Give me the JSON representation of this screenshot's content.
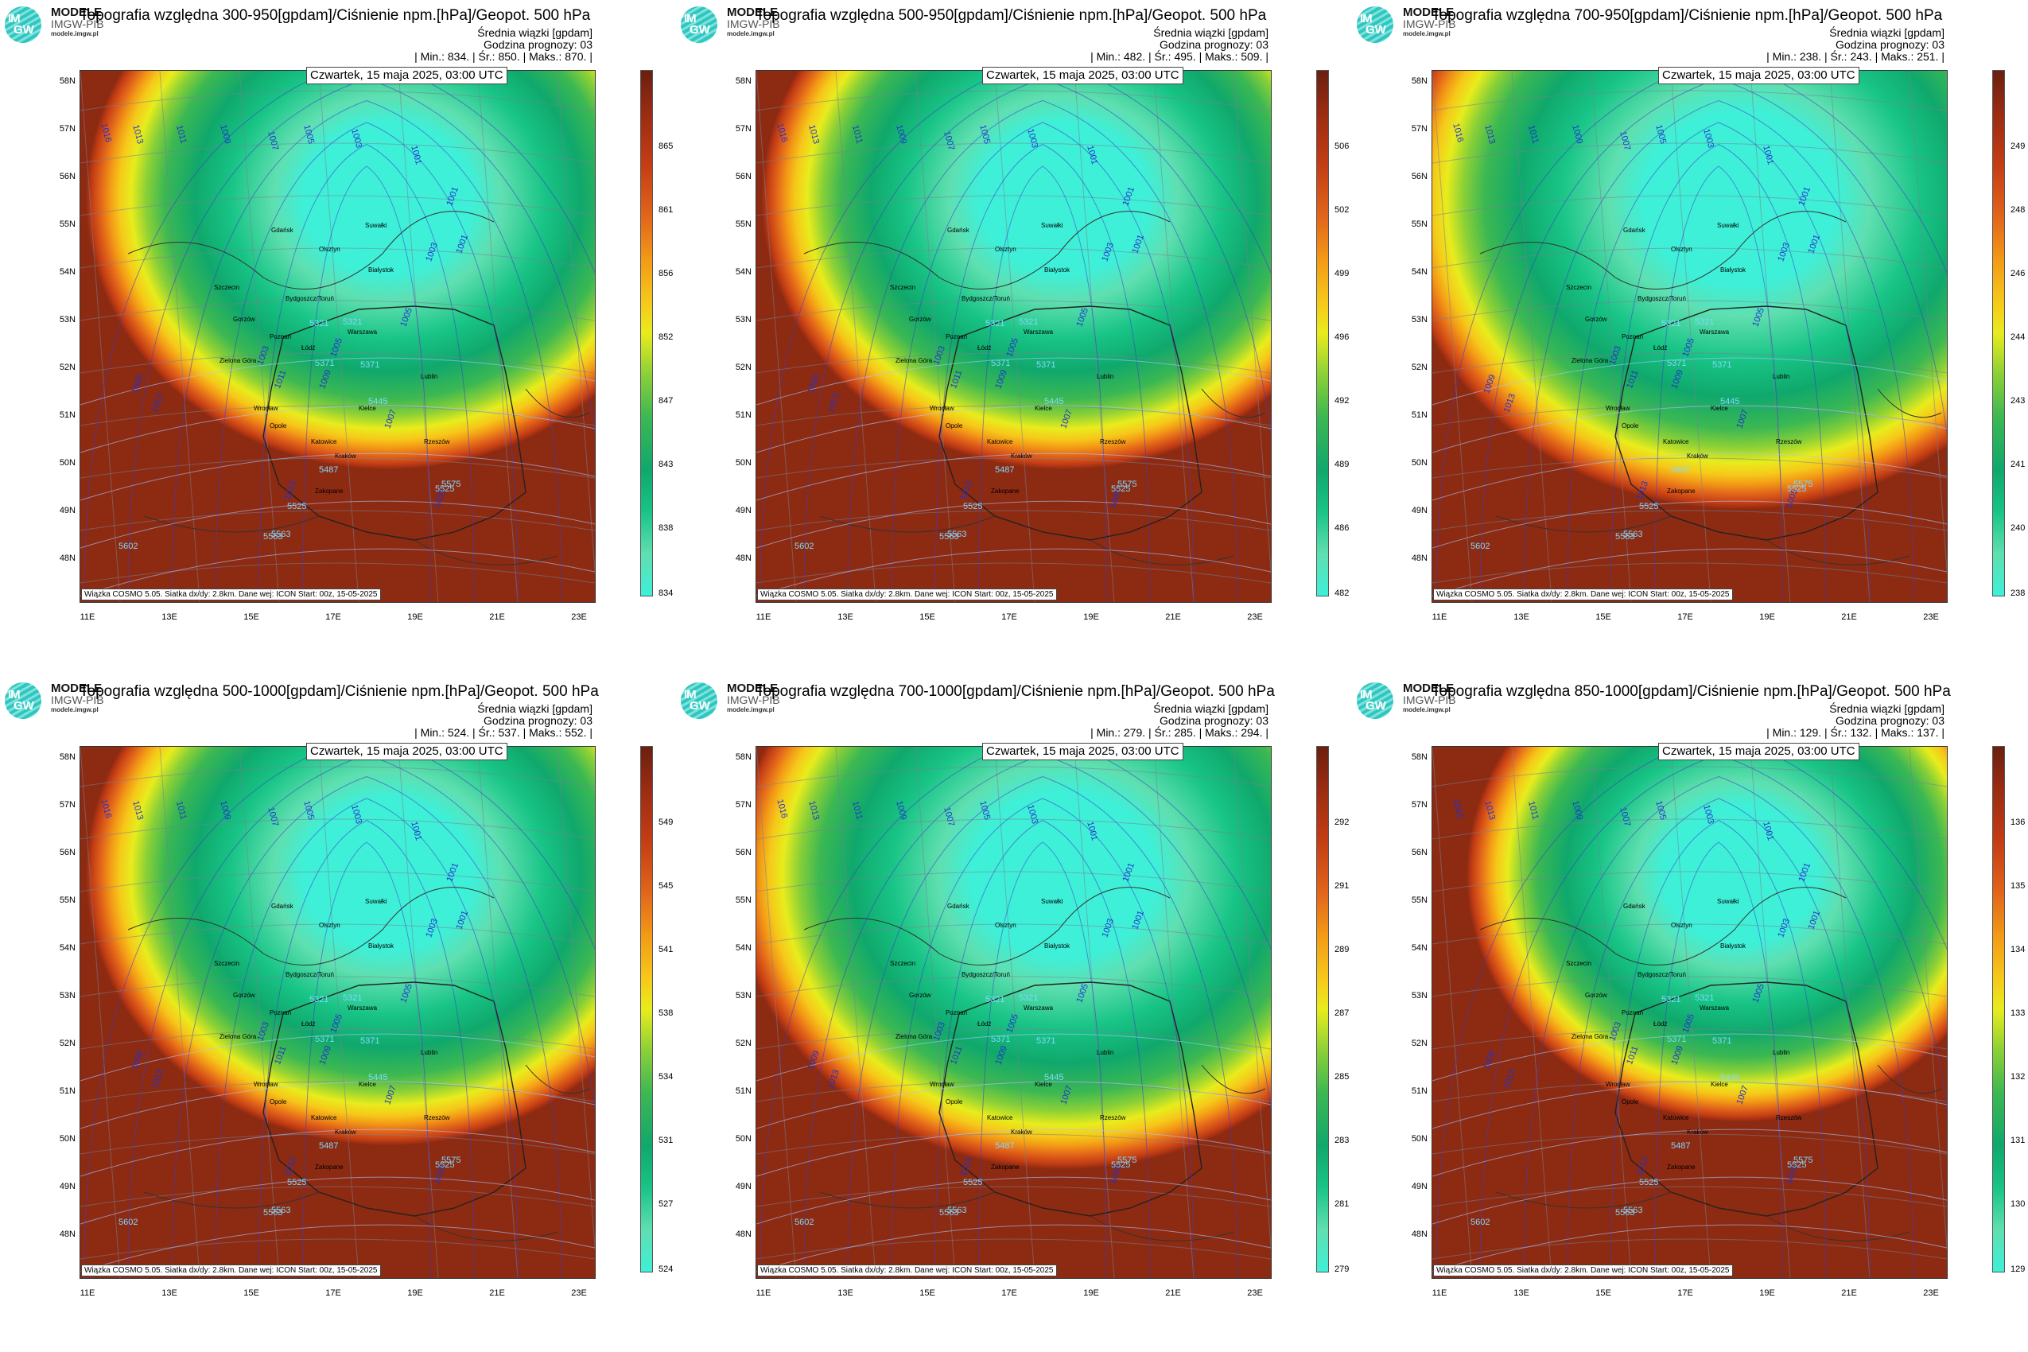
{
  "logo": {
    "im": "IM",
    "gw": "GW",
    "brand": "MODELE",
    "brand_sub": "IMGW-PIB",
    "site": "modele.imgw.pl"
  },
  "common": {
    "ensemble": "Średnia wiązki [gpdam]",
    "forecast_hour": "Godzina prognozy: 03",
    "date": "Czwartek, 15 maja 2025, 03:00 UTC",
    "footer": "Wiązka COSMO 5.05. Siatka dx/dy: 2.8km. Dane wej: ICON Start: 00z, 15-05-2025",
    "lat_labels": [
      "58N",
      "57N",
      "56N",
      "55N",
      "54N",
      "53N",
      "52N",
      "51N",
      "50N",
      "49N",
      "48N"
    ],
    "lon_labels": [
      "11E",
      "13E",
      "15E",
      "17E",
      "19E",
      "21E",
      "23E"
    ]
  },
  "panels": [
    {
      "title": "Topografia względna 300-950[gpdam]/Ciśnienie npm.[hPa]/Geopot. 500 hPa",
      "stats": "| Min.:   834. | Śr.:    850. | Maks.:   870. |",
      "scale": [
        "865",
        "861",
        "856",
        "852",
        "847",
        "843",
        "838",
        "834"
      ],
      "low_colors": [
        "#3ef0d8",
        "#5fdfb0",
        "#18c486",
        "#10a86c"
      ],
      "core_pct": 100
    },
    {
      "title": "Topografia względna 500-950[gpdam]/Ciśnienie npm.[hPa]/Geopot. 500 hPa",
      "stats": "| Min.:   482. | Śr.:    495. | Maks.:   509. |",
      "scale": [
        "506",
        "502",
        "499",
        "496",
        "492",
        "489",
        "486",
        "482"
      ],
      "low_colors": [
        "#3ef0d8",
        "#5fdfb0",
        "#18c486",
        "#10a86c"
      ],
      "core_pct": 100
    },
    {
      "title": "Topografia względna 700-950[gpdam]/Ciśnienie npm.[hPa]/Geopot. 500 hPa",
      "stats": "| Min.:   238. | Śr.:    243. | Maks.:   251. |",
      "scale": [
        "249",
        "248",
        "246",
        "244",
        "243",
        "241",
        "240",
        "238"
      ],
      "low_colors": [
        "#3ef0d8",
        "#5fdfb0",
        "#18c486",
        "#10a86c"
      ],
      "core_pct": 115
    },
    {
      "title": "Topografia względna 500-1000[gpdam]/Ciśnienie npm.[hPa]/Geopot. 500 hPa",
      "stats": "| Min.:   524. | Śr.:    537. | Maks.:   552. |",
      "scale": [
        "549",
        "545",
        "541",
        "538",
        "534",
        "531",
        "527",
        "524"
      ],
      "low_colors": [
        "#3ef0d8",
        "#5fdfb0",
        "#18c486",
        "#10a86c"
      ],
      "core_pct": 100
    },
    {
      "title": "Topografia względna 700-1000[gpdam]/Ciśnienie npm.[hPa]/Geopot. 500 hPa",
      "stats": "| Min.:   279. | Śr.:    285. | Maks.:   294. |",
      "scale": [
        "292",
        "291",
        "289",
        "287",
        "285",
        "283",
        "281",
        "279"
      ],
      "low_colors": [
        "#3ef0d8",
        "#5fdfb0",
        "#18c486",
        "#10a86c"
      ],
      "core_pct": 110
    },
    {
      "title": "Topografia względna 850-1000[gpdam]/Ciśnienie npm.[hPa]/Geopot. 500 hPa",
      "stats": "| Min.:   129. | Śr.:    132. | Maks.:   137. |",
      "scale": [
        "136",
        "135",
        "134",
        "133",
        "132",
        "131",
        "130",
        "129"
      ],
      "low_colors": [
        "#3ef0d8",
        "#5fdfb0",
        "#18c486",
        "#10a86c"
      ],
      "core_pct": 90
    }
  ],
  "isobars": [
    "1016",
    "1013",
    "1011",
    "1009",
    "1007",
    "1005",
    "1003",
    "1001",
    "1001",
    "1003",
    "1005",
    "1007",
    "1009",
    "1011",
    "1013",
    "1009",
    "1003",
    "1005",
    "1001",
    "1013",
    "1005"
  ],
  "geopot": [
    "5321",
    "5371",
    "5321",
    "5371",
    "5445",
    "5487",
    "5525",
    "5563",
    "5602",
    "5563",
    "5525",
    "5575"
  ],
  "cities": [
    "Gdańsk",
    "Olsztyn",
    "Suwałki",
    "Białystok",
    "Szczecin",
    "Bydgoszcz/Toruń",
    "Gorzów",
    "Poznań",
    "Warszawa",
    "Zielona Góra",
    "Łódź",
    "Lublin",
    "Wrocław",
    "Kielce",
    "Opole",
    "Katowice",
    "Rzeszów",
    "Kraków",
    "Zakopane"
  ]
}
